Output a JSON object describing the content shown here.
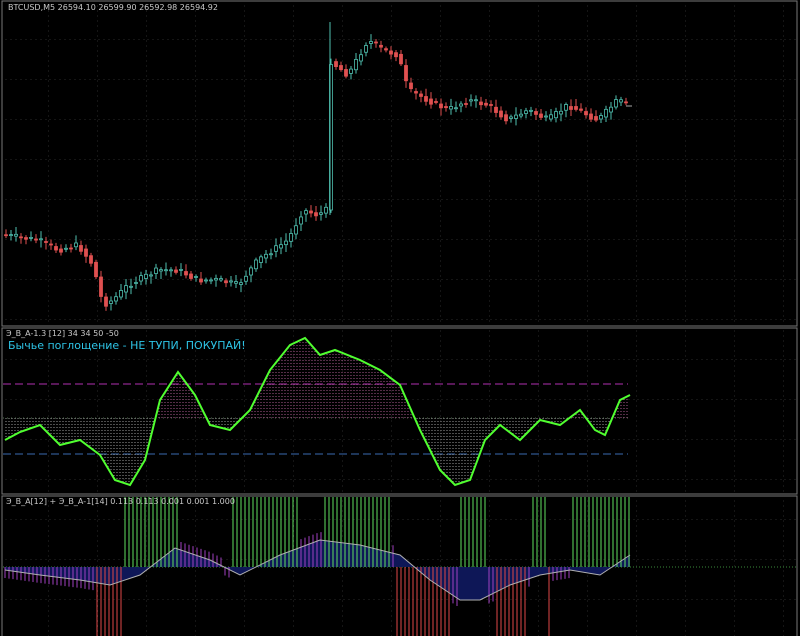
{
  "chart_window": {
    "main_panel": {
      "info": "BTCUSD,M5  26594.10 26599.90 26592.98 26594.92"
    },
    "oscillator_panel": {
      "info": "Э_В_А-1.3 [12]  34 34 50 -50",
      "signal_text": "Бычье поглощение - НЕ    ТУПИ,   ПОКУПАЙ!"
    },
    "histogram_panel": {
      "info": "Э_В_А[12] + Э_В_А-1[14]  0.113 0.113 0.001 0.001 1.000"
    }
  }
}
